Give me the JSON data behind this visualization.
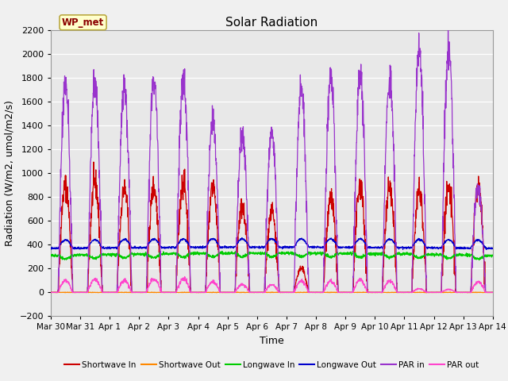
{
  "title": "Solar Radiation",
  "ylabel": "Radiation (W/m2, umol/m2/s)",
  "xlabel": "Time",
  "ylim": [
    -200,
    2200
  ],
  "yticks": [
    -200,
    0,
    200,
    400,
    600,
    800,
    1000,
    1200,
    1400,
    1600,
    1800,
    2000,
    2200
  ],
  "station_label": "WP_met",
  "x_tick_labels": [
    "Mar 30",
    "Mar 31",
    "Apr 1",
    "Apr 2",
    "Apr 3",
    "Apr 4",
    "Apr 5",
    "Apr 6",
    "Apr 7",
    "Apr 8",
    "Apr 9",
    "Apr 10",
    "Apr 11",
    "Apr 12",
    "Apr 13",
    "Apr 14"
  ],
  "legend_entries": [
    {
      "label": "Shortwave In",
      "color": "#cc0000"
    },
    {
      "label": "Shortwave Out",
      "color": "#ff8800"
    },
    {
      "label": "Longwave In",
      "color": "#00cc00"
    },
    {
      "label": "Longwave Out",
      "color": "#0000cc"
    },
    {
      "label": "PAR in",
      "color": "#9933cc"
    },
    {
      "label": "PAR out",
      "color": "#ff44cc"
    }
  ],
  "background_color": "#e8e8e8",
  "fig_background": "#f0f0f0",
  "grid_color": "#ffffff",
  "title_fontsize": 11,
  "axis_fontsize": 9,
  "tick_fontsize": 8,
  "sw_in_peaks": [
    900,
    920,
    870,
    880,
    930,
    900,
    720,
    680,
    200,
    800,
    880,
    870,
    870,
    870,
    900
  ],
  "par_in_peaks": [
    1740,
    1790,
    1730,
    1790,
    1810,
    1460,
    1340,
    1360,
    1720,
    1820,
    1860,
    1800,
    2050,
    2050,
    900
  ],
  "par_out_peaks": [
    100,
    110,
    100,
    115,
    115,
    88,
    65,
    65,
    95,
    95,
    105,
    95,
    30,
    25,
    90
  ]
}
